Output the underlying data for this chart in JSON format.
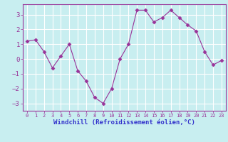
{
  "x": [
    0,
    1,
    2,
    3,
    4,
    5,
    6,
    7,
    8,
    9,
    10,
    11,
    12,
    13,
    14,
    15,
    16,
    17,
    18,
    19,
    20,
    21,
    22,
    23
  ],
  "y": [
    1.2,
    1.3,
    0.5,
    -0.6,
    0.2,
    1.0,
    -0.8,
    -1.5,
    -2.6,
    -3.0,
    -2.0,
    0.0,
    1.0,
    3.3,
    3.3,
    2.5,
    2.8,
    3.3,
    2.8,
    2.3,
    1.9,
    0.5,
    -0.4,
    -0.1
  ],
  "line_color": "#993399",
  "marker": "D",
  "marker_size": 2.5,
  "bg_color": "#c8eef0",
  "grid_color": "#ffffff",
  "xlabel": "Windchill (Refroidissement éolien,°C)",
  "xlabel_color": "#3333cc",
  "tick_color": "#993399",
  "ylim": [
    -3.5,
    3.7
  ],
  "yticks": [
    -3,
    -2,
    -1,
    0,
    1,
    2,
    3
  ],
  "xlim": [
    -0.5,
    23.5
  ],
  "xticks": [
    0,
    1,
    2,
    3,
    4,
    5,
    6,
    7,
    8,
    9,
    10,
    11,
    12,
    13,
    14,
    15,
    16,
    17,
    18,
    19,
    20,
    21,
    22,
    23
  ],
  "xtick_labels": [
    "0",
    "1",
    "2",
    "3",
    "4",
    "5",
    "6",
    "7",
    "8",
    "9",
    "10",
    "11",
    "12",
    "13",
    "14",
    "15",
    "16",
    "17",
    "18",
    "19",
    "20",
    "21",
    "22",
    "23"
  ]
}
